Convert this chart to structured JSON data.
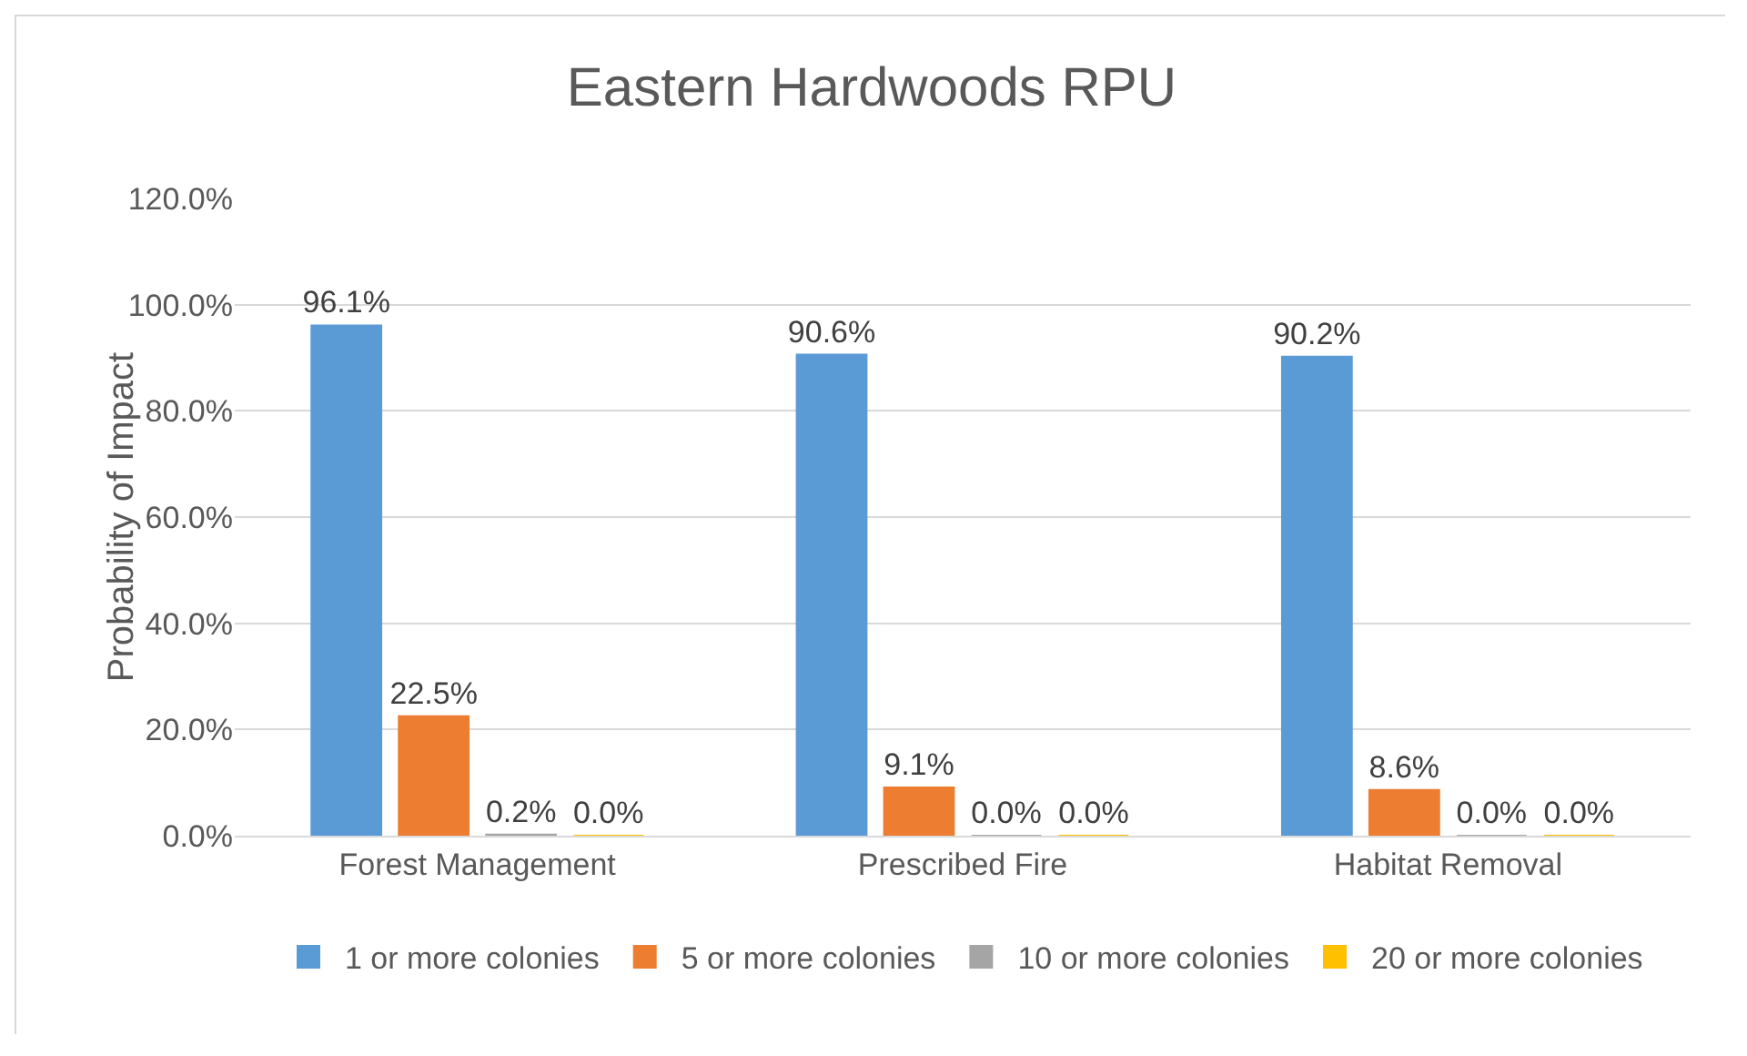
{
  "chart_data": {
    "type": "bar",
    "title": "Eastern Hardwoods RPU",
    "ylabel": "Probability of Impact",
    "categories": [
      "Forest Management",
      "Prescribed Fire",
      "Habitat Removal"
    ],
    "series": [
      {
        "name": "1 or more colonies",
        "color": "#5b9bd5",
        "values": [
          96.1,
          90.6,
          90.2
        ],
        "value_labels": [
          "96.1%",
          "90.6%",
          "90.2%"
        ]
      },
      {
        "name": "5 or more colonies",
        "color": "#ed7d31",
        "values": [
          22.5,
          9.1,
          8.6
        ],
        "value_labels": [
          "22.5%",
          "9.1%",
          "8.6%"
        ]
      },
      {
        "name": "10 or more colonies",
        "color": "#a5a5a5",
        "values": [
          0.2,
          0.0,
          0.0
        ],
        "value_labels": [
          "0.2%",
          "0.0%",
          "0.0%"
        ]
      },
      {
        "name": "20 or more colonies",
        "color": "#ffc000",
        "values": [
          0.0,
          0.0,
          0.0
        ],
        "value_labels": [
          "0.0%",
          "0.0%",
          "0.0%"
        ]
      }
    ],
    "ylim": [
      0,
      120
    ],
    "yticks": [
      {
        "value": 0,
        "label": "0.0%"
      },
      {
        "value": 20,
        "label": "20.0%"
      },
      {
        "value": 40,
        "label": "40.0%"
      },
      {
        "value": 60,
        "label": "60.0%"
      },
      {
        "value": 80,
        "label": "80.0%"
      },
      {
        "value": 100,
        "label": "100.0%"
      },
      {
        "value": 120,
        "label": "120.0%"
      }
    ],
    "grid": "y",
    "legend": "bottom"
  }
}
